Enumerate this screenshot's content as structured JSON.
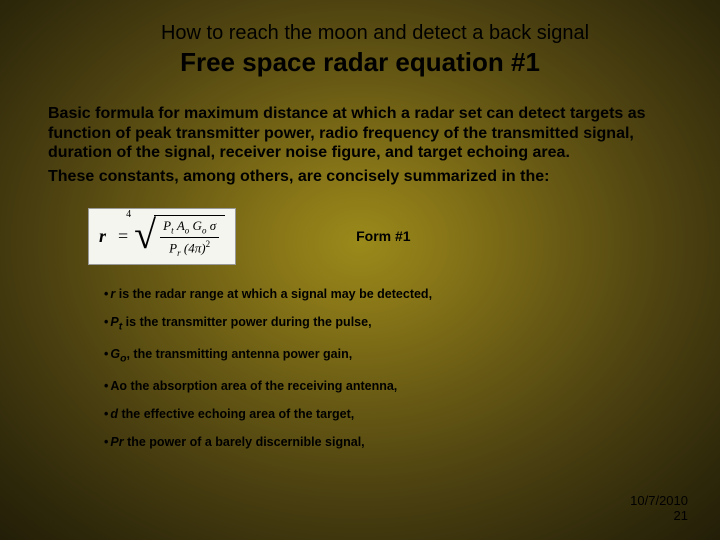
{
  "colors": {
    "text": "#000000",
    "formula_bg": "#f5f5f0",
    "gradient_center": "#9a8a1a",
    "gradient_edge": "#0a0802"
  },
  "supertitle": "How to reach the moon and detect a back signal",
  "title": "Free space radar equation   #1",
  "para1": "Basic  formula for maximum distance at which a radar set can detect targets as function of peak transmitter power, radio frequency of the transmitted signal, duration of the signal, receiver noise figure, and target echoing area.",
  "para2": "These constants, among others, are concisely summarized in the:",
  "formula": {
    "lhs": "r",
    "equals": "=",
    "root_index": "4",
    "numerator": "Pₜ Aₒ Gₒ σ",
    "denominator": "Pᵣ (4π)²"
  },
  "form_label": "Form #1",
  "bullets": [
    {
      "var": "r",
      "text": "  is the radar range at which a signal may be detected,"
    },
    {
      "var": "P",
      "sub": "t",
      "text": " is the transmitter power during the pulse,"
    },
    {
      "var": "G",
      "sub": "o",
      "text": ", the transmitting antenna power gain,"
    },
    {
      "var": "Ao",
      "text": " the absorption area of the receiving antenna,"
    },
    {
      "var": "d",
      "text": "  the effective echoing area of the target,"
    },
    {
      "var": "Pr",
      "text": "  the power of a barely discernible signal,"
    }
  ],
  "footer_date": "10/7/2010",
  "footer_page": "21"
}
